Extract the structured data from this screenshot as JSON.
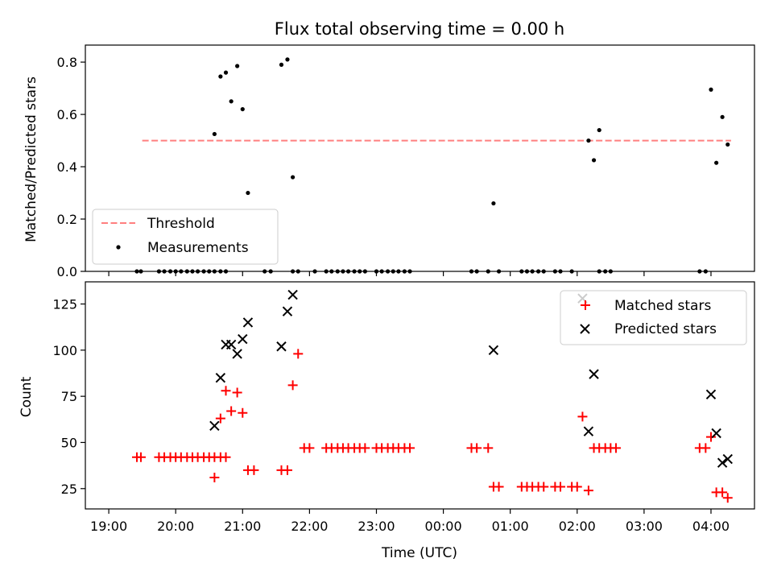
{
  "chart_data": {
    "title": "Flux total observing time = 0.00 h",
    "xlabel": "Time (UTC)",
    "x_unit": "hours since 19:00 UTC",
    "xlim": [
      -0.35,
      9.65
    ],
    "x_ticks": [
      {
        "value": 0,
        "label": "19:00"
      },
      {
        "value": 1,
        "label": "20:00"
      },
      {
        "value": 2,
        "label": "21:00"
      },
      {
        "value": 3,
        "label": "22:00"
      },
      {
        "value": 4,
        "label": "23:00"
      },
      {
        "value": 5,
        "label": "00:00"
      },
      {
        "value": 6,
        "label": "01:00"
      },
      {
        "value": 7,
        "label": "02:00"
      },
      {
        "value": 8,
        "label": "03:00"
      },
      {
        "value": 9,
        "label": "04:00"
      }
    ],
    "top": {
      "type": "scatter",
      "ylabel": "Matched/Predicted stars",
      "ylim": [
        0,
        0.865
      ],
      "yticks": [
        "0.0",
        "0.2",
        "0.4",
        "0.6",
        "0.8"
      ],
      "threshold": {
        "name": "Threshold",
        "value": 0.5,
        "x": [
          0.5,
          9.3
        ],
        "color": "#ff7f7f"
      },
      "legend": {
        "position": "lower-left",
        "entries": [
          "Threshold",
          "Measurements"
        ]
      },
      "measurements": {
        "name": "Measurements",
        "color": "#000000",
        "points": [
          [
            0.42,
            0
          ],
          [
            0.48,
            0
          ],
          [
            0.75,
            0
          ],
          [
            0.83,
            0
          ],
          [
            0.92,
            0
          ],
          [
            1.0,
            0
          ],
          [
            1.08,
            0
          ],
          [
            1.17,
            0
          ],
          [
            1.25,
            0
          ],
          [
            1.33,
            0
          ],
          [
            1.42,
            0
          ],
          [
            1.5,
            0
          ],
          [
            1.58,
            0
          ],
          [
            1.67,
            0
          ],
          [
            1.75,
            0
          ],
          [
            2.33,
            0
          ],
          [
            2.42,
            0
          ],
          [
            2.75,
            0
          ],
          [
            2.83,
            0
          ],
          [
            3.08,
            0
          ],
          [
            3.25,
            0
          ],
          [
            3.33,
            0
          ],
          [
            3.42,
            0
          ],
          [
            3.5,
            0
          ],
          [
            3.58,
            0
          ],
          [
            3.67,
            0
          ],
          [
            3.75,
            0
          ],
          [
            3.83,
            0
          ],
          [
            4.0,
            0
          ],
          [
            4.08,
            0
          ],
          [
            4.17,
            0
          ],
          [
            4.25,
            0
          ],
          [
            4.33,
            0
          ],
          [
            4.42,
            0
          ],
          [
            4.5,
            0
          ],
          [
            5.42,
            0
          ],
          [
            5.5,
            0
          ],
          [
            5.67,
            0
          ],
          [
            5.83,
            0
          ],
          [
            6.17,
            0
          ],
          [
            6.25,
            0
          ],
          [
            6.33,
            0
          ],
          [
            6.42,
            0
          ],
          [
            6.5,
            0
          ],
          [
            6.67,
            0
          ],
          [
            6.75,
            0
          ],
          [
            6.92,
            0
          ],
          [
            7.33,
            0
          ],
          [
            7.42,
            0
          ],
          [
            7.5,
            0
          ],
          [
            8.83,
            0
          ],
          [
            8.92,
            0
          ],
          [
            1.58,
            0.525
          ],
          [
            1.67,
            0.745
          ],
          [
            1.75,
            0.76
          ],
          [
            1.83,
            0.65
          ],
          [
            1.92,
            0.785
          ],
          [
            2.0,
            0.62
          ],
          [
            2.08,
            0.3
          ],
          [
            2.58,
            0.79
          ],
          [
            2.67,
            0.81
          ],
          [
            2.75,
            0.36
          ],
          [
            5.75,
            0.26
          ],
          [
            7.17,
            0.5
          ],
          [
            7.25,
            0.425
          ],
          [
            7.33,
            0.54
          ],
          [
            9.0,
            0.695
          ],
          [
            9.08,
            0.415
          ],
          [
            9.17,
            0.59
          ],
          [
            9.25,
            0.485
          ]
        ]
      }
    },
    "bottom": {
      "type": "scatter",
      "ylabel": "Count",
      "ylim": [
        14,
        137
      ],
      "yticks": [
        25,
        50,
        75,
        100,
        125
      ],
      "legend": {
        "position": "top-right",
        "entries": [
          "Matched stars",
          "Predicted stars"
        ]
      },
      "matched": {
        "name": "Matched stars",
        "color": "#ff0000",
        "points": [
          [
            0.42,
            42
          ],
          [
            0.48,
            42
          ],
          [
            0.75,
            42
          ],
          [
            0.83,
            42
          ],
          [
            0.92,
            42
          ],
          [
            1.0,
            42
          ],
          [
            1.08,
            42
          ],
          [
            1.17,
            42
          ],
          [
            1.25,
            42
          ],
          [
            1.33,
            42
          ],
          [
            1.42,
            42
          ],
          [
            1.5,
            42
          ],
          [
            1.58,
            42
          ],
          [
            1.67,
            42
          ],
          [
            1.75,
            42
          ],
          [
            1.58,
            31
          ],
          [
            1.67,
            63
          ],
          [
            1.75,
            78
          ],
          [
            1.83,
            67
          ],
          [
            1.92,
            77
          ],
          [
            2.0,
            66
          ],
          [
            2.08,
            35
          ],
          [
            2.17,
            35
          ],
          [
            2.58,
            35
          ],
          [
            2.67,
            35
          ],
          [
            2.75,
            81
          ],
          [
            2.83,
            98
          ],
          [
            2.92,
            47
          ],
          [
            3.0,
            47
          ],
          [
            3.25,
            47
          ],
          [
            3.33,
            47
          ],
          [
            3.42,
            47
          ],
          [
            3.5,
            47
          ],
          [
            3.58,
            47
          ],
          [
            3.67,
            47
          ],
          [
            3.75,
            47
          ],
          [
            3.83,
            47
          ],
          [
            4.0,
            47
          ],
          [
            4.08,
            47
          ],
          [
            4.17,
            47
          ],
          [
            4.25,
            47
          ],
          [
            4.33,
            47
          ],
          [
            4.42,
            47
          ],
          [
            4.5,
            47
          ],
          [
            5.42,
            47
          ],
          [
            5.5,
            47
          ],
          [
            5.67,
            47
          ],
          [
            5.75,
            26
          ],
          [
            5.83,
            26
          ],
          [
            6.17,
            26
          ],
          [
            6.25,
            26
          ],
          [
            6.33,
            26
          ],
          [
            6.42,
            26
          ],
          [
            6.5,
            26
          ],
          [
            6.67,
            26
          ],
          [
            6.75,
            26
          ],
          [
            6.92,
            26
          ],
          [
            7.0,
            26
          ],
          [
            7.08,
            64
          ],
          [
            7.17,
            24
          ],
          [
            7.25,
            47
          ],
          [
            7.33,
            47
          ],
          [
            7.42,
            47
          ],
          [
            7.5,
            47
          ],
          [
            7.58,
            47
          ],
          [
            8.83,
            47
          ],
          [
            8.92,
            47
          ],
          [
            9.0,
            53
          ],
          [
            9.08,
            23
          ],
          [
            9.17,
            23
          ],
          [
            9.25,
            20
          ]
        ]
      },
      "predicted": {
        "name": "Predicted stars",
        "color": "#000000",
        "points": [
          [
            1.58,
            59
          ],
          [
            1.67,
            85
          ],
          [
            1.75,
            103
          ],
          [
            1.83,
            103
          ],
          [
            1.92,
            98
          ],
          [
            2.0,
            106
          ],
          [
            2.08,
            115
          ],
          [
            2.58,
            102
          ],
          [
            2.67,
            121
          ],
          [
            2.75,
            130
          ],
          [
            5.75,
            100
          ],
          [
            7.08,
            128
          ],
          [
            7.17,
            56
          ],
          [
            7.25,
            87
          ],
          [
            9.0,
            76
          ],
          [
            9.08,
            55
          ],
          [
            9.17,
            39
          ],
          [
            9.25,
            41
          ]
        ]
      }
    }
  }
}
